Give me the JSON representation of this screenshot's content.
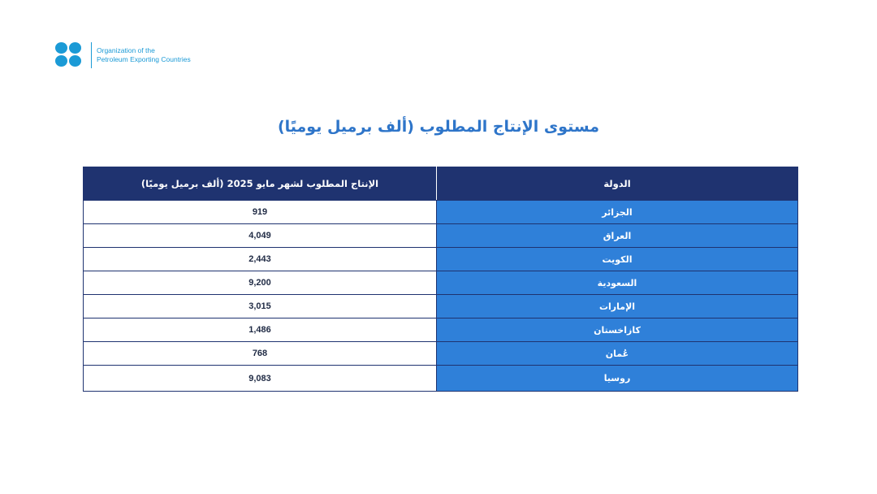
{
  "logo": {
    "line1": "Organization of the",
    "line2": "Petroleum Exporting Countries",
    "color": "#1b9ad6"
  },
  "title": "مستوى الإنتاج المطلوب (ألف برميل يوميًا)",
  "table": {
    "headers": [
      "الدولة",
      "الإنتاج المطلوب لشهر مايو 2025 (ألف برميل يوميًا)"
    ],
    "rows": [
      {
        "country": "الجزائر",
        "value": "919"
      },
      {
        "country": "العراق",
        "value": "4,049"
      },
      {
        "country": "الكويت",
        "value": "2,443"
      },
      {
        "country": "السعودية",
        "value": "9,200"
      },
      {
        "country": "الإمارات",
        "value": "3,015"
      },
      {
        "country": "كازاخستان",
        "value": "1,486"
      },
      {
        "country": "عُمان",
        "value": "768"
      },
      {
        "country": "روسيا",
        "value": "9,083"
      }
    ]
  },
  "colors": {
    "header": "#1f3370",
    "country_cell": "#2f80d9",
    "title": "#2e75c9"
  }
}
